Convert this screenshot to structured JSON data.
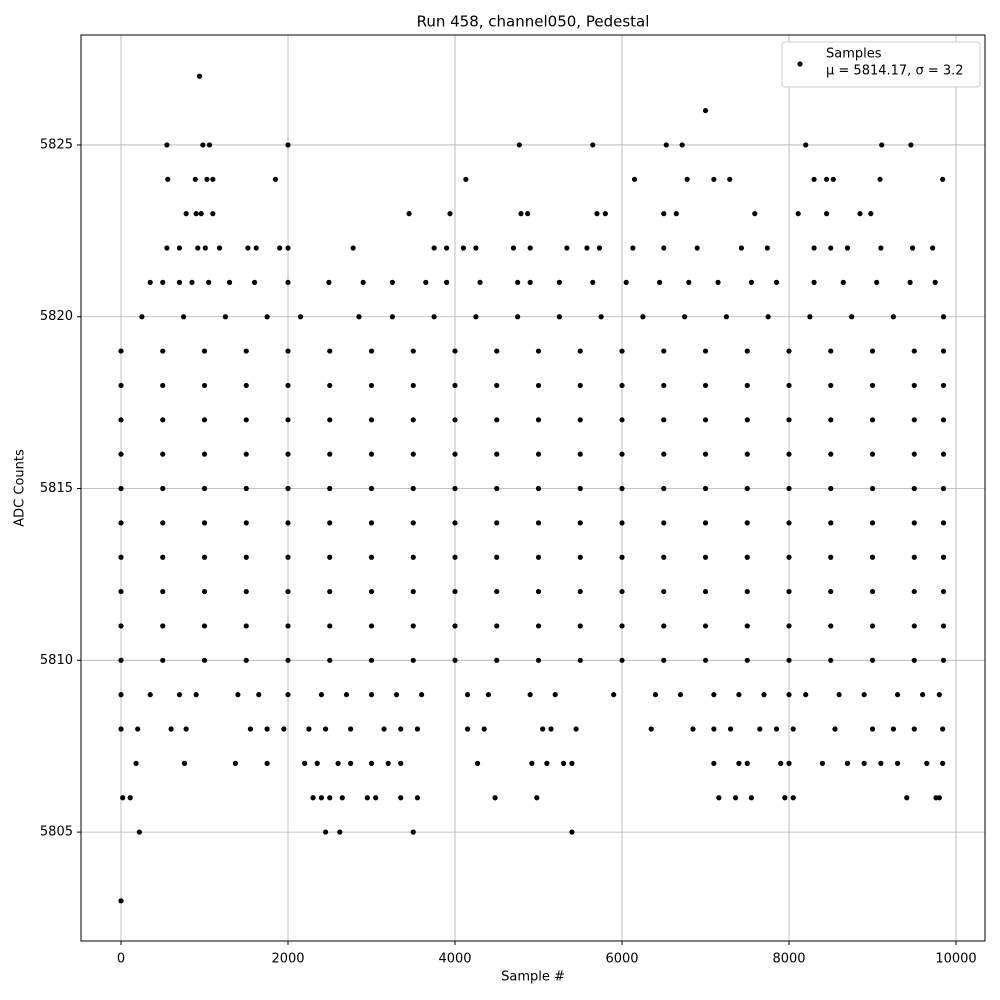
{
  "chart_data": {
    "type": "scatter",
    "title": "Run 458, channel050, Pedestal",
    "xlabel": "Sample #",
    "ylabel": "ADC Counts",
    "series_name": "Samples",
    "legend_label": "μ = 5814.17, σ = 3.2",
    "legend": "upper right",
    "color": "#000000",
    "grid": true,
    "xlim": [
      -479,
      10347
    ],
    "ylim": [
      5801.83,
      5828.2
    ],
    "xticks": [
      0,
      2000,
      4000,
      6000,
      8000,
      10000
    ],
    "yticks": [
      5805,
      5810,
      5815,
      5820,
      5825
    ],
    "x": [
      0,
      500,
      1000,
      1500,
      2000,
      2500,
      3000,
      3500,
      4000,
      4500,
      5000,
      5500,
      6000,
      6500,
      7000,
      7500,
      8000,
      8500,
      9000,
      9500,
      9850,
      0,
      500,
      1000,
      1500,
      2000,
      2500,
      3000,
      3500,
      4000,
      4500,
      5000,
      5500,
      6000,
      6500,
      7000,
      7500,
      8000,
      8500,
      9000,
      9500,
      9850,
      0,
      500,
      1000,
      1500,
      2000,
      2500,
      3000,
      3500,
      4000,
      4500,
      5000,
      5500,
      6000,
      6500,
      7000,
      7500,
      8000,
      8500,
      9000,
      9500,
      9850,
      0,
      500,
      1000,
      1500,
      2000,
      2500,
      3000,
      3500,
      4000,
      4500,
      5000,
      5500,
      6000,
      6500,
      7000,
      7500,
      8000,
      8500,
      9000,
      9500,
      9850,
      0,
      500,
      1000,
      1500,
      2000,
      2500,
      3000,
      3500,
      4000,
      4500,
      5000,
      5500,
      6000,
      6500,
      7000,
      7500,
      8000,
      8500,
      9000,
      9500,
      9850,
      0,
      500,
      1000,
      1500,
      2000,
      2500,
      3000,
      3500,
      4000,
      4500,
      5000,
      5500,
      6000,
      6500,
      7000,
      7500,
      8000,
      8500,
      9000,
      9500,
      9850,
      0,
      500,
      1000,
      1500,
      2000,
      2500,
      3000,
      3500,
      4000,
      4500,
      5000,
      5500,
      6000,
      6500,
      7000,
      7500,
      8000,
      8500,
      9000,
      9500,
      9850,
      0,
      500,
      1000,
      1500,
      2000,
      2500,
      3000,
      3500,
      4000,
      4500,
      5000,
      5500,
      6000,
      6500,
      7000,
      7500,
      8000,
      8500,
      9000,
      9500,
      9850,
      0,
      500,
      1000,
      1500,
      2000,
      2500,
      3000,
      3500,
      4000,
      4500,
      5000,
      5500,
      6000,
      6500,
      7000,
      7500,
      8000,
      8500,
      9000,
      9500,
      9850,
      0,
      500,
      1000,
      1500,
      2000,
      2500,
      3000,
      3500,
      4000,
      4500,
      5000,
      5500,
      6000,
      6500,
      7000,
      7500,
      8000,
      8500,
      9000,
      9500,
      9850,
      250,
      750,
      1250,
      1750,
      2150,
      2850,
      3250,
      3750,
      4250,
      4750,
      5250,
      5750,
      6250,
      6750,
      7250,
      7750,
      8250,
      8750,
      9250,
      9850,
      350,
      500,
      700,
      850,
      1050,
      1300,
      1600,
      2000,
      2490,
      2900,
      3250,
      3650,
      3900,
      4300,
      4750,
      4900,
      5250,
      5650,
      6050,
      6450,
      6800,
      7150,
      7550,
      7850,
      8300,
      8650,
      9050,
      9450,
      9750,
      550,
      700,
      920,
      1010,
      1180,
      1520,
      1620,
      1900,
      2000,
      2780,
      3750,
      3900,
      4100,
      4250,
      4700,
      4900,
      5340,
      5580,
      5730,
      6130,
      6500,
      6900,
      7430,
      7740,
      8300,
      8500,
      8700,
      9100,
      9480,
      9720,
      780,
      900,
      960,
      1100,
      3450,
      3940,
      4790,
      4870,
      5700,
      5800,
      6500,
      6650,
      7590,
      8110,
      8450,
      8850,
      8980,
      560,
      890,
      1030,
      1100,
      1850,
      4130,
      6150,
      6780,
      7100,
      7290,
      8300,
      8450,
      8530,
      9090,
      9840,
      550,
      980,
      1060,
      2000,
      4770,
      5650,
      6530,
      6720,
      8200,
      9110,
      9460,
      7000,
      940,
      0,
      350,
      700,
      900,
      1400,
      1650,
      2000,
      2400,
      2700,
      3000,
      3300,
      3600,
      4150,
      4400,
      4900,
      5200,
      5900,
      6400,
      6700,
      7100,
      7400,
      7700,
      8000,
      8200,
      8600,
      8900,
      9300,
      9600,
      9800,
      0,
      200,
      600,
      780,
      1550,
      1750,
      1950,
      2250,
      2450,
      2750,
      3150,
      3350,
      3550,
      4150,
      4350,
      5050,
      5150,
      5450,
      6350,
      6850,
      7100,
      7300,
      7650,
      7850,
      8050,
      8550,
      9000,
      9250,
      9500,
      9840,
      180,
      760,
      1370,
      1750,
      2200,
      2350,
      2600,
      2750,
      3000,
      3200,
      3350,
      4270,
      4920,
      5100,
      5300,
      5400,
      7100,
      7400,
      7500,
      7900,
      8000,
      8400,
      8700,
      8900,
      9100,
      9300,
      9650,
      9840,
      20,
      110,
      2300,
      2400,
      2500,
      2650,
      2950,
      3050,
      3350,
      3550,
      4480,
      4980,
      7160,
      7360,
      7550,
      7950,
      8050,
      9410,
      9760,
      9800,
      220,
      2450,
      2620,
      3500,
      5400,
      0
    ],
    "values": [
      5810,
      5810,
      5810,
      5810,
      5810,
      5810,
      5810,
      5810,
      5810,
      5810,
      5810,
      5810,
      5810,
      5810,
      5810,
      5810,
      5810,
      5810,
      5810,
      5810,
      5810,
      5811,
      5811,
      5811,
      5811,
      5811,
      5811,
      5811,
      5811,
      5811,
      5811,
      5811,
      5811,
      5811,
      5811,
      5811,
      5811,
      5811,
      5811,
      5811,
      5811,
      5811,
      5812,
      5812,
      5812,
      5812,
      5812,
      5812,
      5812,
      5812,
      5812,
      5812,
      5812,
      5812,
      5812,
      5812,
      5812,
      5812,
      5812,
      5812,
      5812,
      5812,
      5812,
      5813,
      5813,
      5813,
      5813,
      5813,
      5813,
      5813,
      5813,
      5813,
      5813,
      5813,
      5813,
      5813,
      5813,
      5813,
      5813,
      5813,
      5813,
      5813,
      5813,
      5813,
      5814,
      5814,
      5814,
      5814,
      5814,
      5814,
      5814,
      5814,
      5814,
      5814,
      5814,
      5814,
      5814,
      5814,
      5814,
      5814,
      5814,
      5814,
      5814,
      5814,
      5814,
      5815,
      5815,
      5815,
      5815,
      5815,
      5815,
      5815,
      5815,
      5815,
      5815,
      5815,
      5815,
      5815,
      5815,
      5815,
      5815,
      5815,
      5815,
      5815,
      5815,
      5815,
      5816,
      5816,
      5816,
      5816,
      5816,
      5816,
      5816,
      5816,
      5816,
      5816,
      5816,
      5816,
      5816,
      5816,
      5816,
      5816,
      5816,
      5816,
      5816,
      5816,
      5816,
      5817,
      5817,
      5817,
      5817,
      5817,
      5817,
      5817,
      5817,
      5817,
      5817,
      5817,
      5817,
      5817,
      5817,
      5817,
      5817,
      5817,
      5817,
      5817,
      5817,
      5817,
      5818,
      5818,
      5818,
      5818,
      5818,
      5818,
      5818,
      5818,
      5818,
      5818,
      5818,
      5818,
      5818,
      5818,
      5818,
      5818,
      5818,
      5818,
      5818,
      5818,
      5818,
      5819,
      5819,
      5819,
      5819,
      5819,
      5819,
      5819,
      5819,
      5819,
      5819,
      5819,
      5819,
      5819,
      5819,
      5819,
      5819,
      5819,
      5819,
      5819,
      5819,
      5819,
      5820,
      5820,
      5820,
      5820,
      5820,
      5820,
      5820,
      5820,
      5820,
      5820,
      5820,
      5820,
      5820,
      5820,
      5820,
      5820,
      5820,
      5820,
      5820,
      5820,
      5821,
      5821,
      5821,
      5821,
      5821,
      5821,
      5821,
      5821,
      5821,
      5821,
      5821,
      5821,
      5821,
      5821,
      5821,
      5821,
      5821,
      5821,
      5821,
      5821,
      5821,
      5821,
      5821,
      5821,
      5821,
      5821,
      5821,
      5821,
      5821,
      5822,
      5822,
      5822,
      5822,
      5822,
      5822,
      5822,
      5822,
      5822,
      5822,
      5822,
      5822,
      5822,
      5822,
      5822,
      5822,
      5822,
      5822,
      5822,
      5822,
      5822,
      5822,
      5822,
      5822,
      5822,
      5822,
      5822,
      5822,
      5822,
      5822,
      5823,
      5823,
      5823,
      5823,
      5823,
      5823,
      5823,
      5823,
      5823,
      5823,
      5823,
      5823,
      5823,
      5823,
      5823,
      5823,
      5823,
      5824,
      5824,
      5824,
      5824,
      5824,
      5824,
      5824,
      5824,
      5824,
      5824,
      5824,
      5824,
      5824,
      5824,
      5824,
      5825,
      5825,
      5825,
      5825,
      5825,
      5825,
      5825,
      5825,
      5825,
      5825,
      5825,
      5826,
      5827,
      5809,
      5809,
      5809,
      5809,
      5809,
      5809,
      5809,
      5809,
      5809,
      5809,
      5809,
      5809,
      5809,
      5809,
      5809,
      5809,
      5809,
      5809,
      5809,
      5809,
      5809,
      5809,
      5809,
      5809,
      5809,
      5809,
      5809,
      5809,
      5809,
      5808,
      5808,
      5808,
      5808,
      5808,
      5808,
      5808,
      5808,
      5808,
      5808,
      5808,
      5808,
      5808,
      5808,
      5808,
      5808,
      5808,
      5808,
      5808,
      5808,
      5808,
      5808,
      5808,
      5808,
      5808,
      5808,
      5808,
      5808,
      5808,
      5808,
      5807,
      5807,
      5807,
      5807,
      5807,
      5807,
      5807,
      5807,
      5807,
      5807,
      5807,
      5807,
      5807,
      5807,
      5807,
      5807,
      5807,
      5807,
      5807,
      5807,
      5807,
      5807,
      5807,
      5807,
      5807,
      5807,
      5807,
      5807,
      5806,
      5806,
      5806,
      5806,
      5806,
      5806,
      5806,
      5806,
      5806,
      5806,
      5806,
      5806,
      5806,
      5806,
      5806,
      5806,
      5806,
      5806,
      5806,
      5806,
      5805,
      5805,
      5805,
      5805,
      5805,
      5803
    ]
  }
}
